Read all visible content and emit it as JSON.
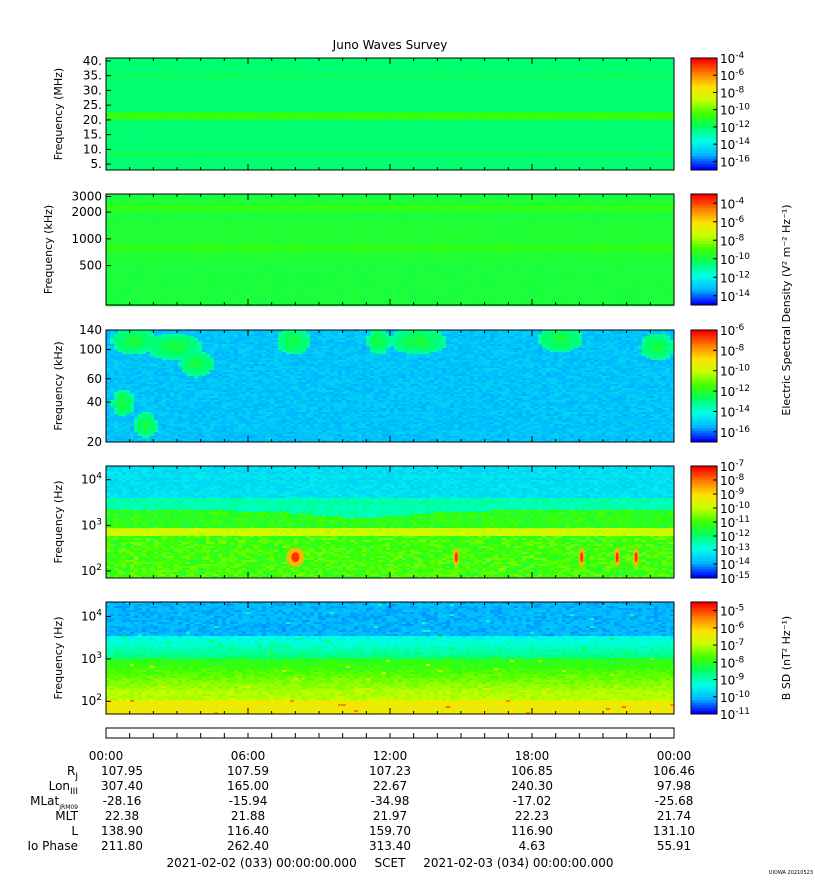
{
  "title": "Juno Waves Survey",
  "signature": "UIOWA 20210523",
  "colors": {
    "cmap": [
      "#0000ff",
      "#00b5ff",
      "#00ffe8",
      "#00ff6a",
      "#3cff00",
      "#c8ff00",
      "#ffe000",
      "#ff7800",
      "#ff0000"
    ]
  },
  "chart_data": [
    {
      "type": "heatmap",
      "ylabel": "Frequency (MHz)",
      "yscale": "linear",
      "yticks": [
        "5.",
        "10.",
        "15.",
        "20.",
        "25.",
        "30.",
        "35.",
        "40."
      ],
      "ylim": [
        3,
        41
      ],
      "colorbar": {
        "ticks": [
          "10-4",
          "10-6",
          "10-8",
          "10-10",
          "10-12",
          "10-14",
          "10-16"
        ],
        "range": [
          -17,
          -4
        ]
      },
      "bands": [
        {
          "y": 21.5,
          "level": 0.48,
          "label": "narrow emission line"
        }
      ],
      "background_level": 0.37
    },
    {
      "type": "heatmap",
      "ylabel": "Frequency (kHz)",
      "yscale": "log",
      "yticks": [
        "3000",
        "2000",
        "1000",
        "500"
      ],
      "ylim": [
        180,
        3200
      ],
      "colorbar": {
        "ticks": [
          "10-4",
          "10-6",
          "10-8",
          "10-10",
          "10-12",
          "10-14"
        ],
        "range": [
          -15,
          -3
        ]
      },
      "bands": [
        {
          "y": 2200,
          "level": 0.47
        },
        {
          "y": 800,
          "level": 0.46
        }
      ],
      "background_level": 0.43
    },
    {
      "type": "heatmap",
      "ylabel": "Frequency (kHz)",
      "yscale": "log",
      "yticks": [
        "140",
        "100",
        "60",
        "40",
        "20"
      ],
      "ylim": [
        20,
        140
      ],
      "colorbar": {
        "ticks": [
          "10-6",
          "10-8",
          "10-10",
          "10-12",
          "10-14",
          "10-16"
        ],
        "range": [
          -17,
          -6
        ]
      },
      "background_level": 0.15
    },
    {
      "type": "heatmap",
      "ylabel": "Frequency (Hz)",
      "yscale": "log",
      "yticks": [
        "10^4",
        "10^3",
        "10^2"
      ],
      "ylim": [
        70,
        20000
      ],
      "colorbar": {
        "ticks": [
          "10-7",
          "10-8",
          "10-9",
          "10-10",
          "10-11",
          "10-12",
          "10-13",
          "10-14",
          "10-15"
        ],
        "range": [
          -15,
          -7
        ]
      },
      "hot_spots_hours": [
        8.0,
        14.8,
        20.1,
        21.6,
        22.4
      ]
    },
    {
      "type": "heatmap",
      "ylabel": "Frequency (Hz)",
      "yscale": "log",
      "yticks": [
        "10^4",
        "10^3",
        "10^2"
      ],
      "ylim": [
        50,
        22000
      ],
      "colorbar": {
        "ticks": [
          "10-5",
          "10-6",
          "10-7",
          "10-8",
          "10-9",
          "10-10",
          "10-11"
        ],
        "range": [
          -11,
          -4.5
        ]
      }
    }
  ],
  "colorbar_titles": {
    "electric": "Electric Spectral Density (V² m⁻² Hz⁻¹)",
    "magnetic": "B SD (nT² Hz⁻¹)"
  },
  "ephemeris": {
    "times": [
      "00:00",
      "06:00",
      "12:00",
      "18:00",
      "00:00"
    ],
    "rows": [
      {
        "label": "R",
        "sub": "J",
        "values": [
          "107.95",
          "107.59",
          "107.23",
          "106.85",
          "106.46"
        ]
      },
      {
        "label": "Lon",
        "sub": "III",
        "values": [
          "307.40",
          "165.00",
          "22.67",
          "240.30",
          "97.98"
        ]
      },
      {
        "label": "MLat",
        "sub": "JRM09",
        "values": [
          "-28.16",
          "-15.94",
          "-34.98",
          "-17.02",
          "-25.68"
        ]
      },
      {
        "label": "MLT",
        "sub": "",
        "values": [
          "22.38",
          "21.88",
          "21.97",
          "22.23",
          "21.74"
        ]
      },
      {
        "label": "L",
        "sub": "",
        "values": [
          "138.90",
          "116.40",
          "159.70",
          "116.90",
          "131.10"
        ]
      },
      {
        "label": "Io Phase",
        "sub": "",
        "values": [
          "211.80",
          "262.40",
          "313.40",
          "4.63",
          "55.91"
        ]
      }
    ]
  },
  "footer": {
    "start": "2021-02-02 (033) 00:00:00.000",
    "mid": "SCET",
    "end": "2021-02-03 (034) 00:00:00.000"
  }
}
